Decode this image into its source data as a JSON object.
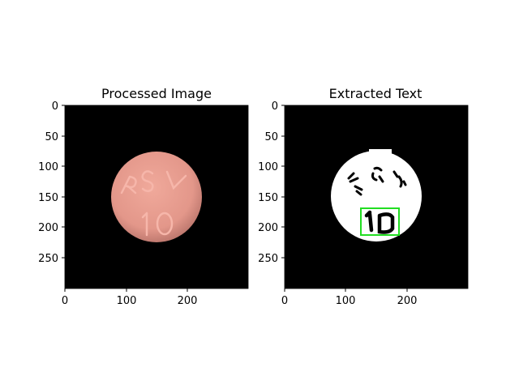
{
  "figure": {
    "background": "#ffffff",
    "panels": [
      {
        "id": "left",
        "title": "Processed Image",
        "x_ticks": [
          "0",
          "100",
          "200"
        ],
        "y_ticks": [
          "0",
          "50",
          "100",
          "150",
          "200",
          "250"
        ],
        "pill_imprint_top": "RSV",
        "pill_imprint_bottom": "10",
        "pill_color": "#e69a8c",
        "image_background": "#000000"
      },
      {
        "id": "right",
        "title": "Extracted Text",
        "x_ticks": [
          "0",
          "100",
          "200"
        ],
        "y_ticks": [
          "0",
          "50",
          "100",
          "150",
          "200",
          "250"
        ],
        "extracted_text": "10",
        "mask_color": "#ffffff",
        "image_background": "#000000",
        "box_color": "#22dd22"
      }
    ]
  }
}
